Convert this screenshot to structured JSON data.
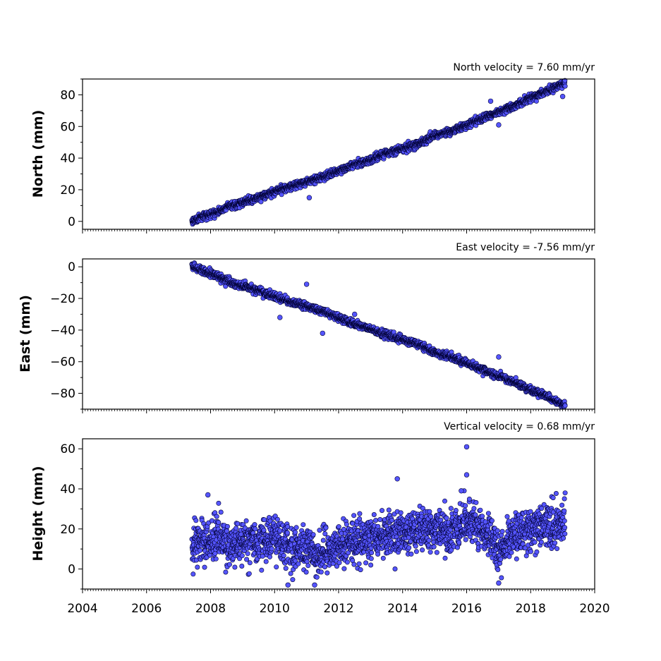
{
  "chart_data": {
    "type": "scatter",
    "x_axis": {
      "type": "time",
      "range": [
        "2004-01-01",
        "2020-01-01"
      ],
      "tick_labels": [
        "2004",
        "2006",
        "2008",
        "2010",
        "2012",
        "2014",
        "2016",
        "2018",
        "2020"
      ],
      "minor_ticks": "monthly"
    },
    "marker": {
      "fill": "#5555ff",
      "edge": "#000033",
      "shape": "circle"
    },
    "panels": [
      {
        "title": "North velocity = 7.60 mm/yr",
        "ylabel": "North (mm)",
        "ylim": [
          -5,
          90
        ],
        "yticks": [
          0,
          20,
          40,
          60,
          80
        ],
        "yminor": 10,
        "trend": {
          "start_date": "2007-06-01",
          "end_date": "2019-02-01",
          "start_value": 0,
          "end_value": 87
        },
        "points": [
          [
            "2007-06-01",
            0
          ],
          [
            "2007-09-01",
            2
          ],
          [
            "2008-01-01",
            4
          ],
          [
            "2008-04-01",
            6
          ],
          [
            "2008-07-01",
            9
          ],
          [
            "2009-01-01",
            12
          ],
          [
            "2009-07-01",
            15
          ],
          [
            "2010-01-01",
            19
          ],
          [
            "2010-07-01",
            22
          ],
          [
            "2011-01-01",
            25
          ],
          [
            "2011-07-01",
            28
          ],
          [
            "2012-01-01",
            32
          ],
          [
            "2012-07-01",
            36
          ],
          [
            "2013-01-01",
            39
          ],
          [
            "2013-07-01",
            43
          ],
          [
            "2014-01-01",
            46
          ],
          [
            "2014-07-01",
            49
          ],
          [
            "2015-01-01",
            54
          ],
          [
            "2015-07-01",
            57
          ],
          [
            "2016-01-01",
            61
          ],
          [
            "2016-07-01",
            65
          ],
          [
            "2017-01-01",
            69
          ],
          [
            "2017-07-01",
            73
          ],
          [
            "2018-01-01",
            78
          ],
          [
            "2018-07-01",
            82
          ],
          [
            "2019-01-01",
            87
          ],
          [
            "2011-02-01",
            15
          ],
          [
            "2016-10-01",
            76
          ],
          [
            "2017-01-01",
            61
          ],
          [
            "2019-01-01",
            79
          ]
        ]
      },
      {
        "title": "East velocity = -7.56 mm/yr",
        "ylabel": "East (mm)",
        "ylim": [
          -90,
          5
        ],
        "yticks": [
          0,
          -20,
          -40,
          -60,
          -80
        ],
        "yminor": 10,
        "trend": {
          "start_date": "2007-06-01",
          "end_date": "2019-02-01",
          "start_value": 0,
          "end_value": -87
        },
        "points": [
          [
            "2007-06-01",
            0
          ],
          [
            "2007-09-01",
            -2
          ],
          [
            "2008-01-01",
            -4
          ],
          [
            "2008-04-01",
            -6
          ],
          [
            "2008-07-01",
            -9
          ],
          [
            "2009-01-01",
            -12
          ],
          [
            "2009-07-01",
            -15
          ],
          [
            "2010-01-01",
            -19
          ],
          [
            "2010-07-01",
            -22
          ],
          [
            "2011-01-01",
            -25
          ],
          [
            "2011-07-01",
            -28
          ],
          [
            "2012-01-01",
            -32
          ],
          [
            "2012-07-01",
            -36
          ],
          [
            "2013-01-01",
            -39
          ],
          [
            "2013-07-01",
            -43
          ],
          [
            "2014-01-01",
            -46
          ],
          [
            "2014-07-01",
            -49
          ],
          [
            "2015-01-01",
            -54
          ],
          [
            "2015-07-01",
            -57
          ],
          [
            "2016-01-01",
            -61
          ],
          [
            "2016-07-01",
            -65
          ],
          [
            "2017-01-01",
            -69
          ],
          [
            "2017-07-01",
            -73
          ],
          [
            "2018-01-01",
            -78
          ],
          [
            "2018-07-01",
            -82
          ],
          [
            "2019-01-01",
            -87
          ],
          [
            "2011-01-01",
            -11
          ],
          [
            "2010-03-01",
            -32
          ],
          [
            "2012-07-01",
            -30
          ],
          [
            "2017-01-01",
            -57
          ],
          [
            "2011-07-01",
            -42
          ]
        ]
      },
      {
        "title": "Vertical velocity = 0.68 mm/yr",
        "ylabel": "Height (mm)",
        "ylim": [
          -10,
          65
        ],
        "yticks": [
          0,
          20,
          40,
          60
        ],
        "yminor": 10,
        "points": [
          [
            "2007-06-01",
            10
          ],
          [
            "2007-09-01",
            15
          ],
          [
            "2008-01-01",
            12
          ],
          [
            "2008-04-01",
            18
          ],
          [
            "2008-07-01",
            11
          ],
          [
            "2009-01-01",
            14
          ],
          [
            "2009-07-01",
            13
          ],
          [
            "2010-01-01",
            16
          ],
          [
            "2010-07-01",
            10
          ],
          [
            "2011-01-01",
            9
          ],
          [
            "2011-07-01",
            8
          ],
          [
            "2012-01-01",
            12
          ],
          [
            "2012-07-01",
            14
          ],
          [
            "2013-01-01",
            15
          ],
          [
            "2013-07-01",
            17
          ],
          [
            "2014-01-01",
            18
          ],
          [
            "2014-07-01",
            19
          ],
          [
            "2015-01-01",
            20
          ],
          [
            "2015-07-01",
            18
          ],
          [
            "2016-01-01",
            24
          ],
          [
            "2016-07-01",
            22
          ],
          [
            "2017-01-01",
            8
          ],
          [
            "2017-07-01",
            16
          ],
          [
            "2018-01-01",
            20
          ],
          [
            "2018-07-01",
            22
          ],
          [
            "2019-01-01",
            24
          ],
          [
            "2016-01-01",
            61
          ],
          [
            "2016-01-01",
            47
          ],
          [
            "2013-11-01",
            45
          ],
          [
            "2007-12-01",
            37
          ],
          [
            "2017-01-01",
            -7
          ],
          [
            "2011-04-01",
            -8
          ],
          [
            "2010-06-01",
            -8
          ],
          [
            "2015-11-01",
            39
          ]
        ]
      }
    ]
  }
}
